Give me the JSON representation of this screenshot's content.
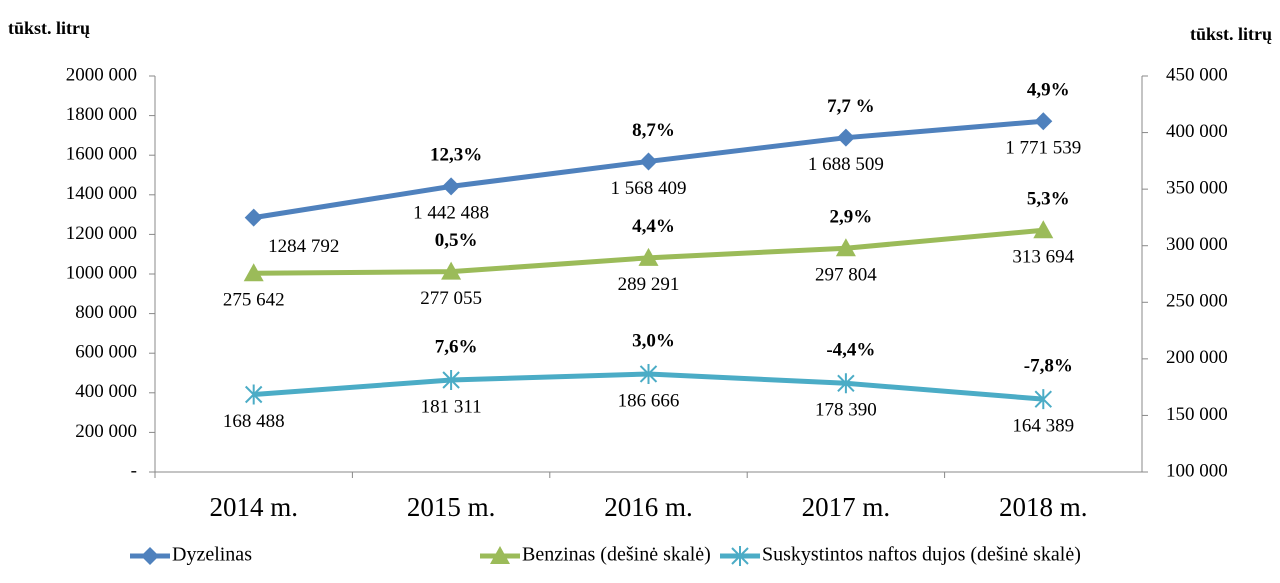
{
  "chart_data": {
    "type": "line",
    "y_label": "tūkst. litrų",
    "y2_label": "tūkst. litrų",
    "categories": [
      "2014 m.",
      "2015 m.",
      "2016 m.",
      "2017 m.",
      "2018 m."
    ],
    "ylim": [
      0,
      2000000
    ],
    "yticks": [
      {
        "value": 0,
        "label": "-"
      },
      {
        "value": 200000,
        "label": "200 000"
      },
      {
        "value": 400000,
        "label": "400 000"
      },
      {
        "value": 600000,
        "label": "600 000"
      },
      {
        "value": 800000,
        "label": "800 000"
      },
      {
        "value": 1000000,
        "label": "1000 000"
      },
      {
        "value": 1200000,
        "label": "1200 000"
      },
      {
        "value": 1400000,
        "label": "1400 000"
      },
      {
        "value": 1600000,
        "label": "1600 000"
      },
      {
        "value": 1800000,
        "label": "1800 000"
      },
      {
        "value": 2000000,
        "label": "2000 000"
      }
    ],
    "y2lim": [
      100000,
      450000
    ],
    "y2ticks": [
      {
        "value": 100000,
        "label": "100 000"
      },
      {
        "value": 150000,
        "label": "150 000"
      },
      {
        "value": 200000,
        "label": "200 000"
      },
      {
        "value": 250000,
        "label": "250 000"
      },
      {
        "value": 300000,
        "label": "300 000"
      },
      {
        "value": 350000,
        "label": "350 000"
      },
      {
        "value": 400000,
        "label": "400 000"
      },
      {
        "value": 450000,
        "label": "450 000"
      }
    ],
    "series": [
      {
        "name": "Dyzelinas",
        "color": "#4f81bd",
        "marker": "diamond",
        "values": [
          1284792,
          1442488,
          1568409,
          1688509,
          1771539
        ],
        "value_labels": [
          "1284 792",
          "1 442 488",
          "1 568 409",
          "1 688 509",
          "1 771 539"
        ],
        "growth": [
          "12,3%",
          "8,7%",
          "7,7 %",
          "4,9%"
        ]
      },
      {
        "name": "Benzinas (dešinė skalė)",
        "color": "#9bbb59",
        "marker": "triangle",
        "axis": "y2",
        "values": [
          275642,
          277055,
          289291,
          297804,
          313694
        ],
        "value_labels": [
          "275 642",
          "277 055",
          "289 291",
          "297 804",
          "313 694"
        ],
        "growth": [
          "0,5%",
          "4,4%",
          "2,9%",
          "5,3%"
        ]
      },
      {
        "name": "Suskystintos naftos dujos (dešinė skalė)",
        "color": "#4bacc6",
        "marker": "star",
        "axis": "y2",
        "values": [
          168488,
          181311,
          186666,
          178390,
          164389
        ],
        "value_labels": [
          "168 488",
          "181 311",
          "186 666",
          "178 390",
          "164 389"
        ],
        "growth": [
          "7,6%",
          "3,0%",
          "-4,4%",
          "-7,8%"
        ]
      }
    ]
  }
}
